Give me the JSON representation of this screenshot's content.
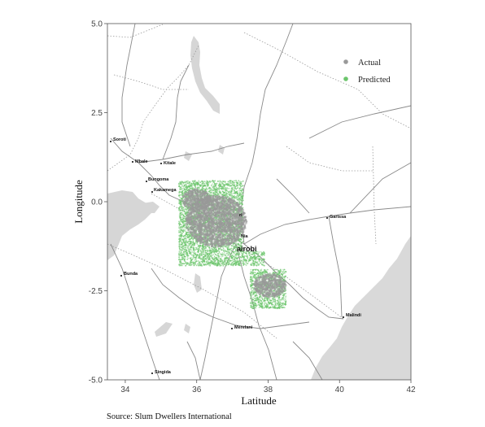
{
  "chart_data": {
    "type": "scatter",
    "title": "",
    "xlabel": "Latitude",
    "ylabel": "Longitude",
    "xlim": [
      33.5,
      42
    ],
    "ylim": [
      -5,
      5
    ],
    "x_ticks": [
      34,
      36,
      38,
      40,
      42
    ],
    "y_ticks": [
      5.0,
      2.5,
      0.0,
      -2.5,
      -5.0
    ],
    "x_tick_labels": [
      "34",
      "36",
      "38",
      "40",
      "42"
    ],
    "y_tick_labels": [
      "5.0",
      "2.5",
      "0.0",
      "-2.5",
      "-5.0"
    ],
    "legend_position": "top-right",
    "series": [
      {
        "name": "Actual",
        "color": "#999999",
        "clusters": [
          {
            "cx": 36.55,
            "cy": -0.55,
            "rx": 0.85,
            "ry": 0.72
          },
          {
            "cx": 36.0,
            "cy": 0.05,
            "rx": 0.4,
            "ry": 0.3
          },
          {
            "cx": 38.05,
            "cy": -2.35,
            "rx": 0.45,
            "ry": 0.33
          }
        ]
      },
      {
        "name": "Predicted",
        "color": "#6cc56c",
        "regions": [
          {
            "x": [
              35.5,
              37.3
            ],
            "y": [
              -1.8,
              0.6
            ]
          },
          {
            "x": [
              37.3,
              37.9
            ],
            "y": [
              -1.8,
              -1.4
            ]
          },
          {
            "x": [
              37.5,
              38.5
            ],
            "y": [
              -3.0,
              -1.9
            ]
          }
        ]
      }
    ],
    "places": [
      {
        "name": "Soroti",
        "lon": 33.6,
        "lat": 1.71
      },
      {
        "name": "Mbale",
        "lon": 34.2,
        "lat": 1.08
      },
      {
        "name": "Kitale",
        "lon": 35.0,
        "lat": 1.02
      },
      {
        "name": "Bungoma",
        "lon": 34.6,
        "lat": 0.57
      },
      {
        "name": "Kakamega",
        "lon": 34.75,
        "lat": 0.28
      },
      {
        "name": "Garissa",
        "lon": 39.65,
        "lat": -0.45
      },
      {
        "name": "Nairobi",
        "lon": 36.83,
        "lat": -1.29
      },
      {
        "name": "Bunda",
        "lon": 33.9,
        "lat": -2.05
      },
      {
        "name": "Malindi",
        "lon": 40.1,
        "lat": -3.22
      },
      {
        "name": "Merelani",
        "lon": 36.95,
        "lat": -3.55
      },
      {
        "name": "Singida",
        "lon": 34.75,
        "lat": -4.8
      }
    ],
    "source": "Source: Slum Dwellers International"
  },
  "legend": {
    "actual_label": "Actual",
    "predicted_label": "Predicted"
  },
  "places_labels": {
    "soroti": "Soroti",
    "mbale": "Mbale",
    "kitale": "Kitale",
    "bungoma": "Bungoma",
    "kakamega": "Kakamega",
    "garissa": "Garissa",
    "nairobi": "airobi",
    "nyeri": "ri",
    "nakuru": "Nia",
    "bunda": "Bunda",
    "malindi": "Malindi",
    "merelani": "Merelani",
    "singida": "Singida"
  },
  "colors": {
    "water": "#d6d6d6",
    "ocean": "#d9d9d9",
    "road": "#8a8a8a",
    "border": "#9a9a9a",
    "actual": "#999999",
    "predicted": "#6cc56c"
  }
}
